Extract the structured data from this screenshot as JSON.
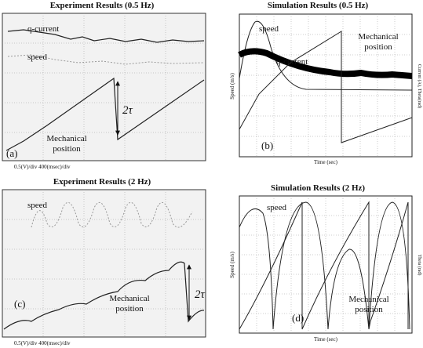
{
  "panels": [
    {
      "title": "Experiment Results (0.5 Hz)",
      "labels": [
        "q-current",
        "speed",
        "2τ",
        "Mechanical",
        "position",
        "(a)"
      ],
      "caption": "0.5(V)/div  400(msec)/div"
    },
    {
      "title": "Simulation Results (0.5 Hz)",
      "labels": [
        "speed",
        "q-current",
        "Mechanical",
        "position",
        "(b)"
      ],
      "x_label": "Time (sec)",
      "y_label": "Speed (m/s)",
      "y2_label": "Current (A), Theta(rad)"
    },
    {
      "title": "Experiment Results (2 Hz)",
      "labels": [
        "speed",
        "2τ",
        "Mechanical",
        "position",
        "(c)"
      ],
      "caption": "0.5(V)/div  400(msec)/div"
    },
    {
      "title": "Simulation Results (2 Hz)",
      "labels": [
        "speed",
        "Mechanical",
        "position",
        "(d)"
      ],
      "x_label": "Time (sec)",
      "y_label": "Speed (m/s)",
      "y2_label": "Theta (rad)"
    }
  ]
}
